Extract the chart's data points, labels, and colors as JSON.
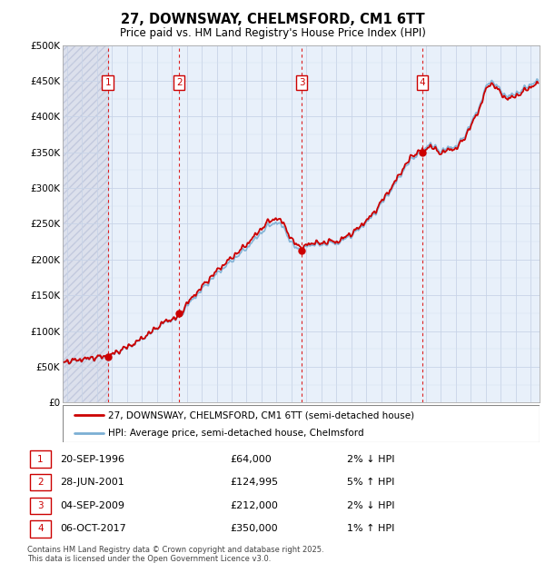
{
  "title": "27, DOWNSWAY, CHELMSFORD, CM1 6TT",
  "subtitle": "Price paid vs. HM Land Registry's House Price Index (HPI)",
  "legend_line1": "27, DOWNSWAY, CHELMSFORD, CM1 6TT (semi-detached house)",
  "legend_line2": "HPI: Average price, semi-detached house, Chelmsford",
  "footer1": "Contains HM Land Registry data © Crown copyright and database right 2025.",
  "footer2": "This data is licensed under the Open Government Licence v3.0.",
  "transactions": [
    {
      "num": 1,
      "date": "20-SEP-1996",
      "price": 64000,
      "hpi_pct": "2%",
      "hpi_dir": "↓"
    },
    {
      "num": 2,
      "date": "28-JUN-2001",
      "price": 124995,
      "hpi_pct": "5%",
      "hpi_dir": "↑"
    },
    {
      "num": 3,
      "date": "04-SEP-2009",
      "price": 212000,
      "hpi_pct": "2%",
      "hpi_dir": "↓"
    },
    {
      "num": 4,
      "date": "06-OCT-2017",
      "price": 350000,
      "hpi_pct": "1%",
      "hpi_dir": "↑"
    }
  ],
  "transaction_dates_decimal": [
    1996.72,
    2001.49,
    2009.68,
    2017.77
  ],
  "transaction_prices": [
    64000,
    124995,
    212000,
    350000
  ],
  "hpi_line_color": "#7bafd4",
  "price_line_color": "#cc0000",
  "vline_color": "#dd2222",
  "box_edge_color": "#cc0000",
  "grid_color": "#c8d4e8",
  "chart_bg_color": "#e8f0fa",
  "hatch_bg_color": "#dce0ec",
  "ylim": [
    0,
    500000
  ],
  "yticks": [
    0,
    50000,
    100000,
    150000,
    200000,
    250000,
    300000,
    350000,
    400000,
    450000,
    500000
  ],
  "ytick_labels": [
    "£0",
    "£50K",
    "£100K",
    "£150K",
    "£200K",
    "£250K",
    "£300K",
    "£350K",
    "£400K",
    "£450K",
    "£500K"
  ],
  "xlim_start": 1993.7,
  "xlim_end": 2025.6,
  "xticks": [
    1994,
    1995,
    1996,
    1997,
    1998,
    1999,
    2000,
    2001,
    2002,
    2003,
    2004,
    2005,
    2006,
    2007,
    2008,
    2009,
    2010,
    2011,
    2012,
    2013,
    2014,
    2015,
    2016,
    2017,
    2018,
    2019,
    2020,
    2021,
    2022,
    2023,
    2024,
    2025
  ]
}
